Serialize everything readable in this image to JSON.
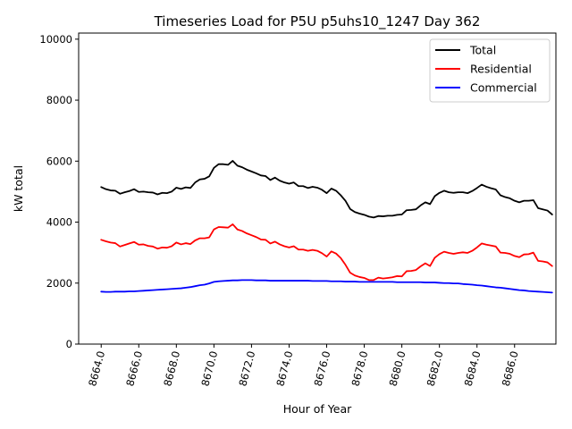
{
  "chart_data": {
    "type": "line",
    "title": "Timeseries Load for P5U p5uhs10_1247  Day 362",
    "xlabel": "Hour of Year",
    "ylabel": "kW total",
    "xlim": [
      8662.8,
      8688.2
    ],
    "ylim": [
      0,
      10200
    ],
    "xticks": [
      8664,
      8666,
      8668,
      8670,
      8672,
      8674,
      8676,
      8678,
      8680,
      8682,
      8684,
      8686
    ],
    "xtick_labels": [
      "8664.0",
      "8666.0",
      "8668.0",
      "8670.0",
      "8672.0",
      "8674.0",
      "8676.0",
      "8678.0",
      "8680.0",
      "8682.0",
      "8684.0",
      "8686.0"
    ],
    "yticks": [
      0,
      2000,
      4000,
      6000,
      8000,
      10000
    ],
    "ytick_labels": [
      "0",
      "2000",
      "4000",
      "6000",
      "8000",
      "10000"
    ],
    "legend_position": "top-right",
    "x_start": 8664,
    "x_step": 0.25,
    "series": [
      {
        "name": "Total",
        "color": "#000000",
        "values": [
          5150,
          5080,
          5040,
          5030,
          4930,
          4980,
          5020,
          5080,
          4990,
          5000,
          4980,
          4970,
          4910,
          4960,
          4950,
          5000,
          5130,
          5090,
          5140,
          5120,
          5300,
          5400,
          5420,
          5500,
          5780,
          5900,
          5900,
          5880,
          6010,
          5850,
          5800,
          5720,
          5660,
          5600,
          5530,
          5510,
          5380,
          5460,
          5360,
          5300,
          5260,
          5300,
          5180,
          5180,
          5120,
          5160,
          5130,
          5060,
          4950,
          5100,
          5030,
          4880,
          4700,
          4430,
          4330,
          4280,
          4240,
          4180,
          4150,
          4200,
          4190,
          4210,
          4210,
          4240,
          4250,
          4390,
          4400,
          4420,
          4550,
          4650,
          4590,
          4850,
          4960,
          5030,
          4980,
          4960,
          4980,
          4980,
          4950,
          5020,
          5120,
          5230,
          5160,
          5110,
          5070,
          4880,
          4820,
          4780,
          4700,
          4650,
          4700,
          4700,
          4720,
          4460,
          4420,
          4380,
          4250
        ]
      },
      {
        "name": "Residential",
        "color": "#ff0000",
        "values": [
          3420,
          3370,
          3330,
          3310,
          3200,
          3250,
          3300,
          3350,
          3260,
          3270,
          3220,
          3200,
          3130,
          3170,
          3160,
          3210,
          3330,
          3270,
          3310,
          3280,
          3400,
          3470,
          3470,
          3500,
          3760,
          3840,
          3830,
          3820,
          3930,
          3760,
          3710,
          3630,
          3570,
          3510,
          3430,
          3420,
          3300,
          3360,
          3270,
          3210,
          3170,
          3210,
          3100,
          3100,
          3060,
          3090,
          3060,
          2980,
          2870,
          3040,
          2970,
          2820,
          2600,
          2340,
          2250,
          2200,
          2170,
          2100,
          2100,
          2180,
          2150,
          2170,
          2190,
          2230,
          2220,
          2390,
          2400,
          2430,
          2550,
          2650,
          2560,
          2830,
          2950,
          3030,
          2990,
          2960,
          2990,
          3010,
          2990,
          3060,
          3170,
          3300,
          3260,
          3230,
          3200,
          3000,
          2990,
          2960,
          2890,
          2850,
          2940,
          2950,
          3000,
          2730,
          2710,
          2680,
          2560
        ]
      },
      {
        "name": "Commercial",
        "color": "#0000ff",
        "values": [
          1720,
          1710,
          1710,
          1720,
          1720,
          1720,
          1730,
          1730,
          1740,
          1750,
          1760,
          1770,
          1780,
          1790,
          1800,
          1810,
          1820,
          1830,
          1850,
          1870,
          1900,
          1930,
          1950,
          1990,
          2040,
          2060,
          2070,
          2080,
          2090,
          2090,
          2100,
          2100,
          2100,
          2090,
          2090,
          2090,
          2080,
          2080,
          2080,
          2080,
          2080,
          2080,
          2080,
          2080,
          2080,
          2070,
          2070,
          2070,
          2070,
          2060,
          2060,
          2060,
          2050,
          2050,
          2050,
          2040,
          2040,
          2040,
          2040,
          2040,
          2040,
          2040,
          2040,
          2030,
          2030,
          2030,
          2030,
          2030,
          2030,
          2020,
          2020,
          2020,
          2010,
          2000,
          2000,
          1990,
          1990,
          1970,
          1960,
          1950,
          1930,
          1920,
          1900,
          1880,
          1860,
          1850,
          1830,
          1810,
          1790,
          1770,
          1760,
          1740,
          1730,
          1720,
          1710,
          1700,
          1690
        ]
      }
    ]
  }
}
